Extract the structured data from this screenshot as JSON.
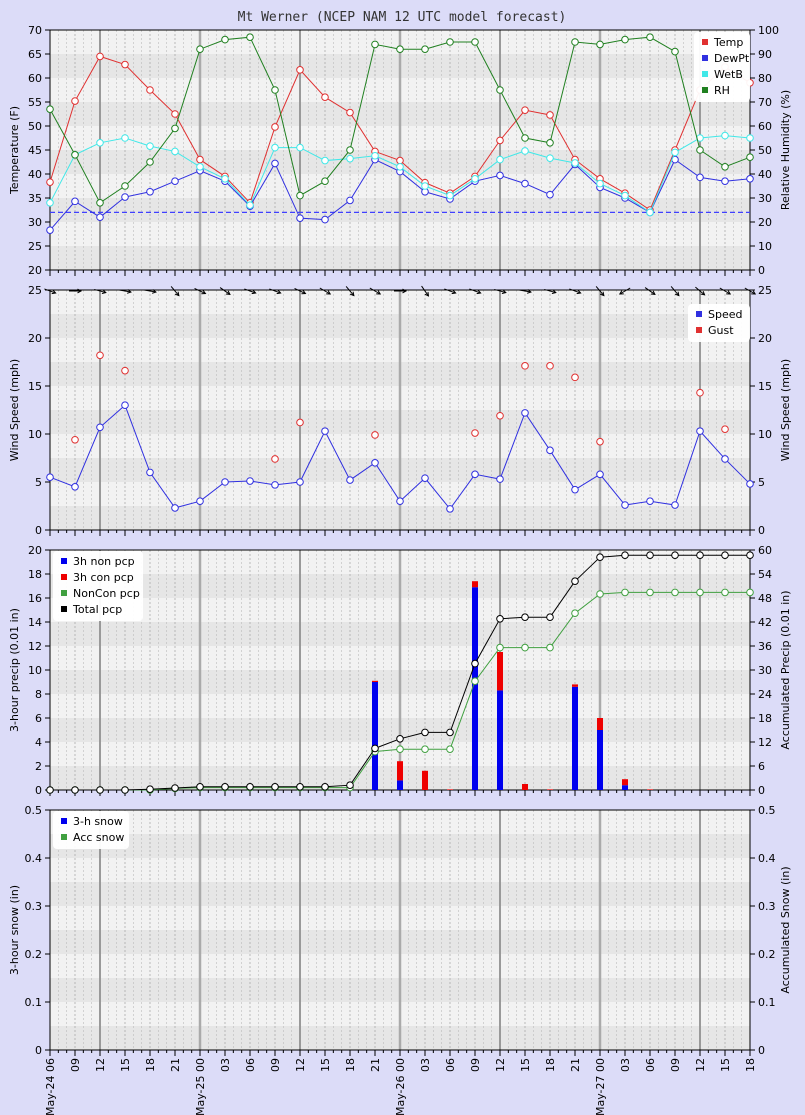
{
  "title": "Mt Werner (NCEP NAM 12 UTC model forecast)",
  "time_labels": [
    "May-24 06",
    "09",
    "12",
    "15",
    "18",
    "21",
    "May-25 00",
    "03",
    "06",
    "09",
    "12",
    "15",
    "18",
    "21",
    "May-26 00",
    "03",
    "06",
    "09",
    "12",
    "15",
    "18",
    "21",
    "May-27 00",
    "03",
    "06",
    "09",
    "12",
    "15",
    "18"
  ],
  "colors": {
    "temp": "#e03030",
    "dewpt": "#3030e0",
    "wetb": "#40e8e8",
    "rh": "#208020",
    "speed": "#3030e0",
    "gust": "#e03030",
    "pcp_non": "#0000ee",
    "pcp_con": "#ee0000",
    "noncon_acc": "#40a040",
    "total_acc": "#000000",
    "freezing": "#4040ff",
    "panel_bg": "#f2f2f2",
    "page_bg": "#dcdcf8"
  },
  "chart_data": [
    {
      "type": "line",
      "ylabel": "Temperature (F)",
      "y2label": "Relative Humidity (%)",
      "ylim": [
        20,
        70
      ],
      "y2lim": [
        0,
        100
      ],
      "yticks": [
        20,
        25,
        30,
        35,
        40,
        45,
        50,
        55,
        60,
        65,
        70
      ],
      "y2ticks": [
        0,
        10,
        20,
        30,
        40,
        50,
        60,
        70,
        80,
        90,
        100
      ],
      "freezing_line": 32,
      "legend": [
        "Temp",
        "DewPt",
        "WetB",
        "RH"
      ],
      "series": [
        {
          "name": "Temp",
          "axis": "left",
          "values": [
            38.3,
            55.2,
            64.5,
            62.8,
            57.5,
            52.5,
            43.0,
            39.5,
            34.0,
            49.8,
            61.7,
            56.0,
            52.8,
            44.7,
            42.8,
            38.2,
            36.0,
            39.5,
            47.0,
            53.3,
            52.3,
            43.0,
            39.0,
            36.0,
            32.5,
            45.0,
            57.5,
            62.3,
            59.0
          ]
        },
        {
          "name": "DewPt",
          "axis": "left",
          "values": [
            28.3,
            34.3,
            31.0,
            35.2,
            36.3,
            38.5,
            40.7,
            38.5,
            33.3,
            42.2,
            30.8,
            30.5,
            34.5,
            43.0,
            40.5,
            36.3,
            34.8,
            38.5,
            39.7,
            38.0,
            35.7,
            42.0,
            37.2,
            35.0,
            32.0,
            43.0,
            39.3,
            38.5,
            39.0
          ]
        },
        {
          "name": "WetB",
          "axis": "left",
          "values": [
            34.0,
            44.0,
            46.5,
            47.5,
            45.8,
            44.7,
            41.5,
            39.0,
            33.5,
            45.5,
            45.5,
            42.8,
            43.2,
            43.8,
            41.5,
            37.5,
            35.5,
            39.0,
            43.0,
            44.8,
            43.3,
            42.3,
            38.0,
            35.5,
            32.0,
            44.5,
            47.5,
            48.0,
            47.5
          ]
        },
        {
          "name": "RH",
          "axis": "right",
          "values": [
            67,
            48,
            28,
            35,
            45,
            59,
            92,
            96,
            97,
            75,
            31,
            37,
            50,
            94,
            92,
            92,
            95,
            95,
            75,
            55,
            53,
            95,
            94,
            96,
            97,
            91,
            50,
            43,
            47
          ]
        }
      ]
    },
    {
      "type": "line",
      "ylabel": "Wind Speed (mph)",
      "y2label": "Wind Speed (mph)",
      "ylim": [
        0,
        25
      ],
      "yticks": [
        0,
        5,
        10,
        15,
        20,
        25
      ],
      "legend": [
        "Speed",
        "Gust"
      ],
      "wind_direction_deg": [
        290,
        270,
        285,
        280,
        280,
        320,
        295,
        305,
        290,
        290,
        295,
        300,
        320,
        300,
        270,
        325,
        290,
        290,
        285,
        280,
        285,
        290,
        320,
        60,
        305,
        320,
        310,
        300,
        300
      ],
      "series": [
        {
          "name": "Speed",
          "values": [
            5.5,
            4.5,
            10.7,
            13.0,
            6.0,
            2.3,
            3.0,
            5.0,
            5.1,
            4.7,
            5.0,
            10.3,
            5.2,
            7.0,
            3.0,
            5.4,
            2.2,
            5.8,
            5.3,
            12.2,
            8.3,
            4.2,
            5.8,
            2.6,
            3.0,
            2.6,
            10.3,
            7.4,
            4.8
          ]
        },
        {
          "name": "Gust",
          "values": [
            null,
            9.4,
            18.2,
            16.6,
            null,
            null,
            null,
            null,
            null,
            7.4,
            11.2,
            null,
            null,
            9.9,
            null,
            null,
            null,
            10.1,
            11.9,
            17.1,
            17.1,
            15.9,
            9.2,
            null,
            null,
            null,
            14.3,
            10.5,
            null
          ]
        }
      ]
    },
    {
      "type": "bar",
      "ylabel": "3-hour precip (0.01 in)",
      "y2label": "Accumulated Precip (0.01 in)",
      "ylim": [
        0,
        20
      ],
      "y2lim": [
        0,
        60
      ],
      "yticks": [
        0,
        2,
        4,
        6,
        8,
        10,
        12,
        14,
        16,
        18,
        20
      ],
      "y2ticks": [
        0,
        6,
        12,
        18,
        24,
        30,
        36,
        42,
        48,
        54,
        60
      ],
      "legend": [
        "3h non pcp",
        "3h con pcp",
        "NonCon pcp",
        "Total pcp"
      ],
      "series": [
        {
          "name": "3h non pcp",
          "values": [
            0,
            0,
            0,
            0,
            0,
            0,
            0,
            0,
            0,
            0,
            0,
            0,
            0,
            9.0,
            0.8,
            0,
            0,
            16.9,
            8.3,
            0,
            0,
            8.6,
            5.0,
            0.4,
            0,
            0,
            0,
            0,
            0
          ]
        },
        {
          "name": "3h con pcp",
          "values": [
            0,
            0,
            0,
            0,
            0.05,
            0.3,
            0,
            0,
            0,
            0,
            0,
            0,
            0,
            0.1,
            1.6,
            1.6,
            0.05,
            0.5,
            3.2,
            0.5,
            0.05,
            0.2,
            1.0,
            0.5,
            0.05,
            0,
            0,
            0,
            0
          ]
        },
        {
          "name": "NonCon pcp",
          "values": [
            0,
            0,
            0,
            0,
            0,
            0.4,
            0.6,
            0.6,
            0.6,
            0.6,
            0.6,
            0.6,
            0.6,
            9.6,
            10.2,
            10.2,
            10.2,
            27.2,
            35.6,
            35.6,
            35.6,
            44.2,
            49.0,
            49.4,
            49.4,
            49.4,
            49.4,
            49.4,
            49.4
          ]
        },
        {
          "name": "Total pcp",
          "values": [
            0,
            0,
            0,
            0,
            0.2,
            0.5,
            0.8,
            0.8,
            0.8,
            0.8,
            0.8,
            0.8,
            1.2,
            10.4,
            12.8,
            14.4,
            14.4,
            31.6,
            42.8,
            43.2,
            43.2,
            52.2,
            58.2,
            58.7,
            58.7,
            58.7,
            58.7,
            58.7,
            58.7
          ]
        }
      ]
    },
    {
      "type": "bar",
      "ylabel": "3-hour snow (in)",
      "y2label": "Accumulated Snow (in)",
      "ylim": [
        0,
        0.5
      ],
      "y2lim": [
        0,
        0.5
      ],
      "yticks": [
        "0",
        "0.1",
        "0.2",
        "0.3",
        "0.4",
        "0.5"
      ],
      "legend": [
        "3-h snow",
        "Acc snow"
      ],
      "series": [
        {
          "name": "3-h snow",
          "values": [
            0,
            0,
            0,
            0,
            0,
            0,
            0,
            0,
            0,
            0,
            0,
            0,
            0,
            0,
            0,
            0,
            0,
            0,
            0,
            0,
            0,
            0,
            0,
            0,
            0,
            0,
            0,
            0,
            0
          ]
        },
        {
          "name": "Acc snow",
          "values": [
            0,
            0,
            0,
            0,
            0,
            0,
            0,
            0,
            0,
            0,
            0,
            0,
            0,
            0,
            0,
            0,
            0,
            0,
            0,
            0,
            0,
            0,
            0,
            0,
            0,
            0,
            0,
            0,
            0
          ]
        }
      ]
    }
  ]
}
